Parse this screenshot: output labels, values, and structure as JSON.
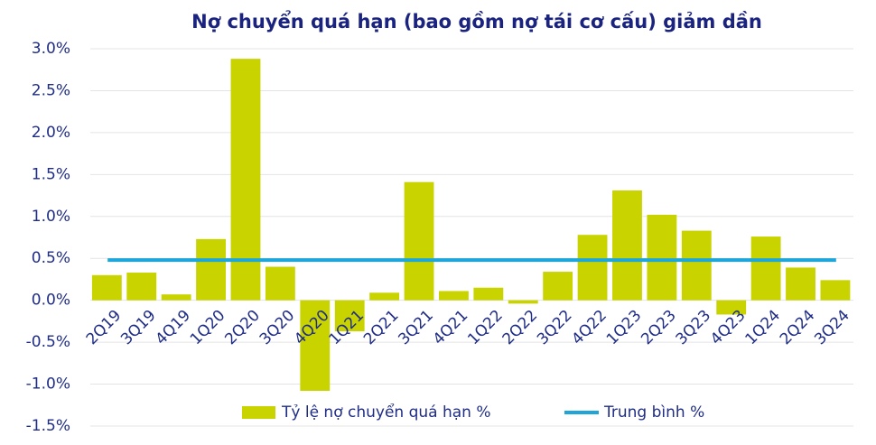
{
  "chart_data": {
    "type": "bar",
    "title": "Nợ chuyển quá hạn (bao gồm nợ tái cơ cấu) giảm dần",
    "categories": [
      "2Q19",
      "3Q19",
      "4Q19",
      "1Q20",
      "2Q20",
      "3Q20",
      "4Q20",
      "1Q21",
      "2Q21",
      "3Q21",
      "4Q21",
      "1Q22",
      "2Q22",
      "3Q22",
      "4Q22",
      "1Q23",
      "2Q23",
      "3Q23",
      "4Q23",
      "1Q24",
      "2Q24",
      "3Q24"
    ],
    "series": [
      {
        "name": "Tỷ lệ nợ chuyển quá hạn %",
        "type": "bar",
        "color": "#c8d300",
        "values": [
          0.3,
          0.33,
          0.07,
          0.73,
          2.88,
          0.4,
          -1.08,
          -0.37,
          0.09,
          1.41,
          0.11,
          0.15,
          -0.04,
          0.34,
          0.78,
          1.31,
          1.02,
          0.83,
          -0.17,
          0.76,
          0.39,
          0.24
        ]
      },
      {
        "name": "Trung bình %",
        "type": "line",
        "color": "#1ea6da",
        "values": [
          0.48,
          0.48,
          0.48,
          0.48,
          0.48,
          0.48,
          0.48,
          0.48,
          0.48,
          0.48,
          0.48,
          0.48,
          0.48,
          0.48,
          0.48,
          0.48,
          0.48,
          0.48,
          0.48,
          0.48,
          0.48,
          0.48
        ]
      }
    ],
    "ylim": [
      -1.5,
      3.0
    ],
    "yticks": [
      {
        "value": -1.5,
        "label": "-1.5%"
      },
      {
        "value": -1.0,
        "label": "-1.0%"
      },
      {
        "value": -0.5,
        "label": "-0.5%"
      },
      {
        "value": 0.0,
        "label": "0.0%"
      },
      {
        "value": 0.5,
        "label": "0.5%"
      },
      {
        "value": 1.0,
        "label": "1.0%"
      },
      {
        "value": 1.5,
        "label": "1.5%"
      },
      {
        "value": 2.0,
        "label": "2.0%"
      },
      {
        "value": 2.5,
        "label": "2.5%"
      },
      {
        "value": 3.0,
        "label": "3.0%"
      }
    ],
    "grid": true
  }
}
